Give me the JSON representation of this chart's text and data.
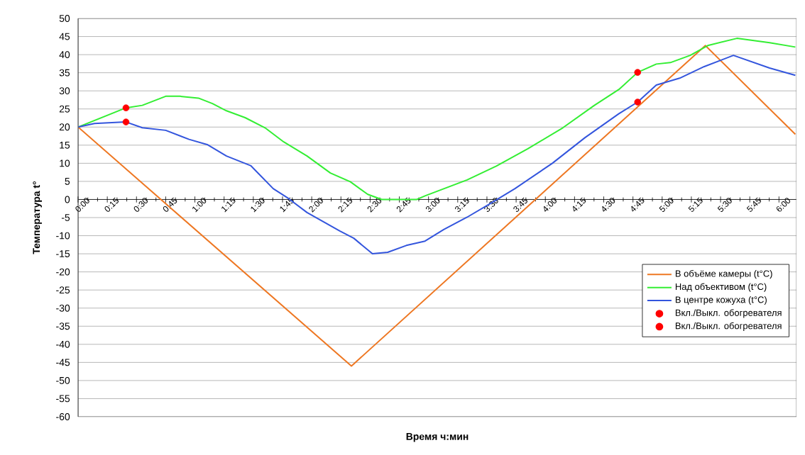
{
  "chart_data": {
    "type": "line",
    "xlabel": "Время ч:мин",
    "ylabel": "Температура t°",
    "xlim": [
      0,
      6.15
    ],
    "ylim": [
      -60,
      50
    ],
    "xticks": [
      {
        "value": 0,
        "label": "0:00"
      },
      {
        "value": 0.25,
        "label": "0:15"
      },
      {
        "value": 0.5,
        "label": "0:30"
      },
      {
        "value": 0.75,
        "label": "0:45"
      },
      {
        "value": 1,
        "label": "1:00"
      },
      {
        "value": 1.25,
        "label": "1:15"
      },
      {
        "value": 1.5,
        "label": "1:30"
      },
      {
        "value": 1.75,
        "label": "1:45"
      },
      {
        "value": 2,
        "label": "2:00"
      },
      {
        "value": 2.25,
        "label": "2:15"
      },
      {
        "value": 2.5,
        "label": "2:30"
      },
      {
        "value": 2.75,
        "label": "2:45"
      },
      {
        "value": 3,
        "label": "3:00"
      },
      {
        "value": 3.25,
        "label": "3:15"
      },
      {
        "value": 3.5,
        "label": "3:30"
      },
      {
        "value": 3.75,
        "label": "3:45"
      },
      {
        "value": 4,
        "label": "4:00"
      },
      {
        "value": 4.25,
        "label": "4:15"
      },
      {
        "value": 4.5,
        "label": "4:30"
      },
      {
        "value": 4.75,
        "label": "4:45"
      },
      {
        "value": 5,
        "label": "5:00"
      },
      {
        "value": 5.25,
        "label": "5:15"
      },
      {
        "value": 5.5,
        "label": "5:30"
      },
      {
        "value": 5.75,
        "label": "5:45"
      },
      {
        "value": 6,
        "label": "6:00"
      }
    ],
    "yticks": [
      -60,
      -55,
      -50,
      -45,
      -40,
      -35,
      -30,
      -25,
      -20,
      -15,
      -10,
      -5,
      0,
      5,
      10,
      15,
      20,
      25,
      30,
      35,
      40,
      45,
      50
    ],
    "grid": "y",
    "legend": "bottom right",
    "series": [
      {
        "name": "В объёме камеры (t°C)",
        "color": "#ee7722",
        "x": [
          0,
          2.34,
          5.37,
          6.14
        ],
        "values": [
          20,
          -46,
          42.5,
          18
        ]
      },
      {
        "name": "Над объективом (t°C)",
        "color": "#33ee33",
        "x": [
          0,
          0.41,
          0.55,
          0.75,
          0.87,
          1.03,
          1.15,
          1.27,
          1.43,
          1.6,
          1.76,
          1.96,
          2.16,
          2.33,
          2.48,
          2.6,
          2.9,
          2.97,
          3.33,
          3.58,
          3.85,
          4.15,
          4.42,
          4.63,
          4.79,
          4.95,
          5.07,
          5.24,
          5.39,
          5.64,
          5.92,
          6.14
        ],
        "values": [
          20,
          25.3,
          26,
          28.5,
          28.5,
          28,
          26.5,
          24.5,
          22.6,
          19.8,
          15.9,
          12,
          7.3,
          4.9,
          1.4,
          0,
          0,
          1,
          5.4,
          9.2,
          14,
          19.8,
          26,
          30.4,
          35.1,
          37.4,
          37.8,
          39.8,
          42.5,
          44.5,
          43.3,
          42.1
        ]
      },
      {
        "name": "В центре кожуха (t°C)",
        "color": "#3355dd",
        "x": [
          0,
          0.14,
          0.41,
          0.55,
          0.75,
          0.95,
          1.11,
          1.27,
          1.48,
          1.67,
          1.8,
          1.96,
          2.24,
          2.36,
          2.52,
          2.65,
          2.81,
          2.97,
          3.13,
          3.33,
          3.54,
          3.74,
          4.06,
          4.34,
          4.63,
          4.79,
          4.95,
          5.15,
          5.36,
          5.61,
          5.92,
          6.14
        ],
        "values": [
          20,
          21,
          21.4,
          19.8,
          19.1,
          16.6,
          15.1,
          12,
          9.3,
          3,
          0.3,
          -3.6,
          -8.7,
          -10.7,
          -15,
          -14.6,
          -12.7,
          -11.5,
          -8.3,
          -4.9,
          -0.9,
          3,
          10,
          17.1,
          23.7,
          26.9,
          31.6,
          33.5,
          36.7,
          39.8,
          36.3,
          34.3
        ]
      },
      {
        "name": "Вкл./Выкл. обогревателя",
        "type": "scatter",
        "color": "#ff0000",
        "x": [
          0.41,
          4.79
        ],
        "values": [
          25.3,
          35.1
        ]
      },
      {
        "name": "Вкл./Выкл. обогревателя",
        "type": "scatter",
        "color": "#ff0000",
        "x": [
          0.41,
          4.79
        ],
        "values": [
          21.4,
          26.9
        ]
      }
    ]
  }
}
